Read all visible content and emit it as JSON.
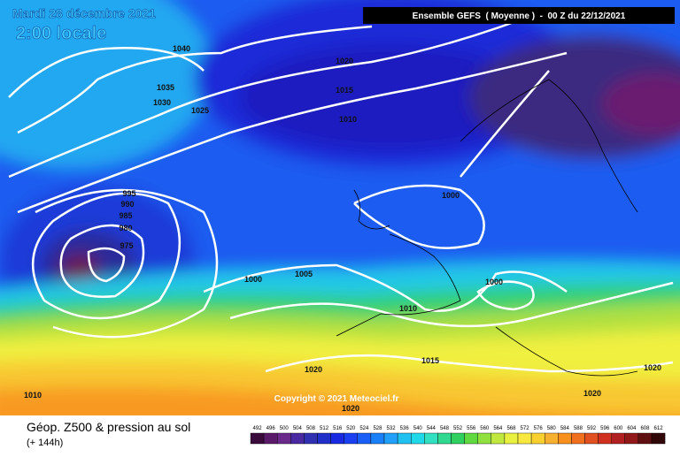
{
  "header": {
    "date": "Mardi 28 décembre 2021",
    "time": "2:00 locale",
    "run": "Ensemble GEFS  ( Moyenne )  -  00 Z du 22/12/2021",
    "copyright": "Copyright © 2021 Meteociel.fr"
  },
  "isobars": {
    "labels": [
      "1040",
      "1035",
      "1030",
      "1025",
      "1020",
      "1015",
      "1010",
      "995",
      "990",
      "985",
      "980",
      "975",
      "1000",
      "1005",
      "1000",
      "1000",
      "1010",
      "1015",
      "1020",
      "1020",
      "1020",
      "1020",
      "1010"
    ]
  },
  "footer": {
    "title": "Géop. Z500 & pression au sol",
    "lead": "(+ 144h)"
  },
  "legend": {
    "values": [
      492,
      496,
      500,
      504,
      508,
      512,
      516,
      520,
      524,
      528,
      532,
      536,
      540,
      544,
      548,
      552,
      556,
      560,
      564,
      568,
      572,
      576,
      580,
      584,
      588,
      592,
      596,
      600,
      604,
      608,
      612
    ],
    "colors": [
      "#3a0a3a",
      "#5a1a6a",
      "#6a2a8a",
      "#4a2aa0",
      "#3030b0",
      "#2030c8",
      "#1a2ae0",
      "#1a40f0",
      "#1a60f8",
      "#1a80f8",
      "#20a0f8",
      "#20c0f0",
      "#20d8e8",
      "#30e0c0",
      "#30d890",
      "#30d060",
      "#60d840",
      "#90e040",
      "#c0e840",
      "#e8f040",
      "#f8e840",
      "#f8d030",
      "#f8b030",
      "#f89020",
      "#f07020",
      "#e05020",
      "#d03020",
      "#b02020",
      "#901818",
      "#601010",
      "#300808"
    ]
  }
}
